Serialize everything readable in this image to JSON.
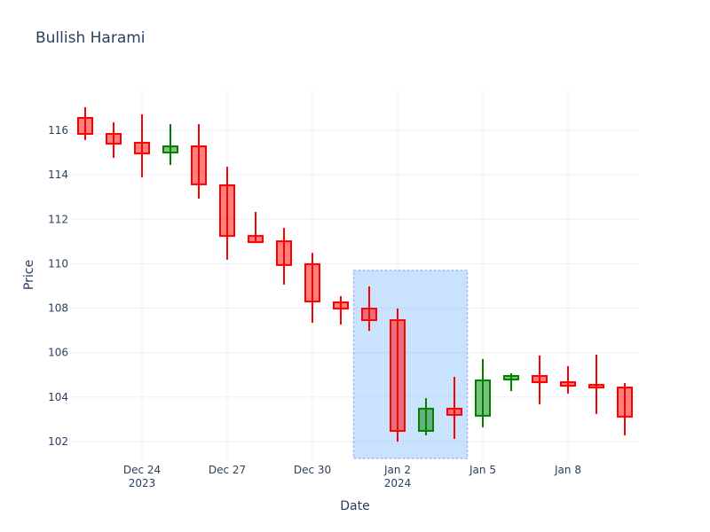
{
  "chart_data": {
    "type": "candlestick",
    "title": "Bullish Harami",
    "xlabel": "Date",
    "ylabel": "Price",
    "ylim": [
      101.2,
      117.7
    ],
    "yticks": [
      102,
      104,
      106,
      108,
      110,
      112,
      114,
      116
    ],
    "xticks": [
      {
        "date": "2023-12-24",
        "label": "Dec 24",
        "sublabel": "2023"
      },
      {
        "date": "2023-12-27",
        "label": "Dec 27",
        "sublabel": ""
      },
      {
        "date": "2023-12-30",
        "label": "Dec 30",
        "sublabel": ""
      },
      {
        "date": "2024-01-02",
        "label": "Jan 2",
        "sublabel": "2024"
      },
      {
        "date": "2024-01-05",
        "label": "Jan 5",
        "sublabel": ""
      },
      {
        "date": "2024-01-08",
        "label": "Jan 8",
        "sublabel": ""
      }
    ],
    "grid": true,
    "legend": false,
    "increasing_color": "#008000",
    "decreasing_color": "#ff0000",
    "increasing_fill": "rgba(0,128,0,0.5)",
    "decreasing_fill": "rgba(255,0,0,0.5)",
    "highlight": {
      "x0": "2023-12-31T00:00",
      "x1": "2024-01-04T00:00",
      "y0": 101.24,
      "y1": 109.7,
      "fill": "rgba(135,190,250,0.45)",
      "border": "#a9b8f0"
    },
    "candles": [
      {
        "date": "2023-12-22",
        "open": 116.56,
        "high": 117.04,
        "low": 115.56,
        "close": 115.84
      },
      {
        "date": "2023-12-23",
        "open": 115.84,
        "high": 116.36,
        "low": 114.76,
        "close": 115.4
      },
      {
        "date": "2023-12-24",
        "open": 115.44,
        "high": 116.72,
        "low": 113.89,
        "close": 114.96
      },
      {
        "date": "2023-12-25",
        "open": 115.0,
        "high": 116.28,
        "low": 114.44,
        "close": 115.28
      },
      {
        "date": "2023-12-26",
        "open": 115.28,
        "high": 116.28,
        "low": 112.93,
        "close": 113.57
      },
      {
        "date": "2023-12-27",
        "open": 113.53,
        "high": 114.36,
        "low": 110.18,
        "close": 111.25
      },
      {
        "date": "2023-12-28",
        "open": 111.25,
        "high": 112.33,
        "low": 110.93,
        "close": 110.97
      },
      {
        "date": "2023-12-29",
        "open": 111.01,
        "high": 111.61,
        "low": 109.06,
        "close": 109.94
      },
      {
        "date": "2023-12-30",
        "open": 109.98,
        "high": 110.49,
        "low": 107.34,
        "close": 108.3
      },
      {
        "date": "2023-12-31",
        "open": 108.26,
        "high": 108.54,
        "low": 107.26,
        "close": 107.98
      },
      {
        "date": "2024-01-01",
        "open": 107.98,
        "high": 108.98,
        "low": 106.98,
        "close": 107.46
      },
      {
        "date": "2024-01-02",
        "open": 107.46,
        "high": 107.98,
        "low": 102.0,
        "close": 102.48
      },
      {
        "date": "2024-01-03",
        "open": 102.48,
        "high": 103.95,
        "low": 102.28,
        "close": 103.48
      },
      {
        "date": "2024-01-04",
        "open": 103.48,
        "high": 104.91,
        "low": 102.12,
        "close": 103.2
      },
      {
        "date": "2024-01-05",
        "open": 103.16,
        "high": 105.71,
        "low": 102.64,
        "close": 104.75
      },
      {
        "date": "2024-01-06",
        "open": 104.79,
        "high": 105.07,
        "low": 104.27,
        "close": 104.95
      },
      {
        "date": "2024-01-07",
        "open": 104.95,
        "high": 105.87,
        "low": 103.68,
        "close": 104.67
      },
      {
        "date": "2024-01-08",
        "open": 104.67,
        "high": 105.39,
        "low": 104.15,
        "close": 104.51
      },
      {
        "date": "2024-01-09",
        "open": 104.55,
        "high": 105.91,
        "low": 103.24,
        "close": 104.43
      },
      {
        "date": "2024-01-10",
        "open": 104.43,
        "high": 104.63,
        "low": 102.28,
        "close": 103.12
      }
    ]
  }
}
